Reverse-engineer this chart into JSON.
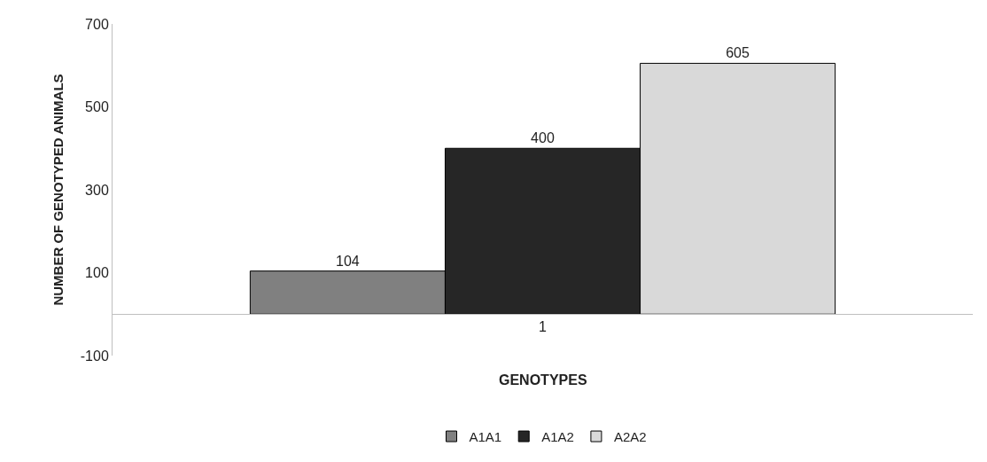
{
  "chart_data": {
    "type": "bar",
    "xlabel": "GENOTYPES",
    "ylabel": "NUMBER OF GENOTYPED ANIMALS",
    "categories": [
      "1"
    ],
    "series": [
      {
        "name": "A1A1",
        "color": "#808080",
        "values": [
          104
        ]
      },
      {
        "name": "A1A2",
        "color": "#262626",
        "values": [
          400
        ]
      },
      {
        "name": "A2A2",
        "color": "#d9d9d9",
        "values": [
          605
        ]
      }
    ],
    "ylim": [
      -100,
      700
    ],
    "yticks": [
      -100,
      100,
      300,
      500,
      700
    ],
    "grid": false,
    "legend": "bottom",
    "data_labels": true
  }
}
